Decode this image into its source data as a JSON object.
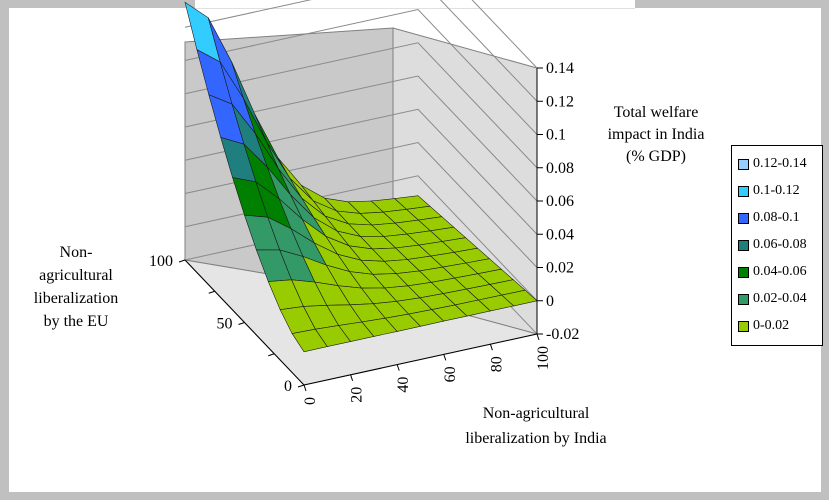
{
  "chart_data": {
    "type": "surface",
    "z_title_lines": [
      "Total welfare",
      "impact in India",
      "(% GDP)"
    ],
    "x_title_lines": [
      "Non-agricultural",
      "liberalization by India"
    ],
    "y_title_lines": [
      "Non-",
      "agricultural",
      "liberalization",
      "by the EU"
    ],
    "z_ticks": [
      "0.14",
      "0.12",
      "0.1",
      "0.08",
      "0.06",
      "0.04",
      "0.02",
      "0",
      "-0.02"
    ],
    "x_ticks": [
      "0",
      "20",
      "40",
      "60",
      "80",
      "100"
    ],
    "y_ticks": [
      "100",
      "50",
      "0"
    ],
    "zlim": [
      -0.02,
      0.14
    ],
    "xlim": [
      0,
      100
    ],
    "ylim": [
      0,
      100
    ],
    "legend_position": "right",
    "legend": [
      {
        "label": "0.12-0.14",
        "color": "#99ccff"
      },
      {
        "label": "0.1-0.12",
        "color": "#33ccff"
      },
      {
        "label": "0.08-0.1",
        "color": "#3366ff"
      },
      {
        "label": "0.06-0.08",
        "color": "#1f7f7f"
      },
      {
        "label": "0.04-0.06",
        "color": "#008000"
      },
      {
        "label": "0.02-0.04",
        "color": "#339966"
      },
      {
        "label": "0-0.02",
        "color": "#99cc00"
      }
    ],
    "surface": {
      "x": [
        0,
        10,
        20,
        30,
        40,
        50,
        60,
        70,
        80,
        90,
        100
      ],
      "y": [
        0,
        10,
        20,
        30,
        40,
        50,
        60,
        70,
        80,
        90,
        100
      ],
      "peak": {
        "x": 0,
        "y": 100,
        "z": 0.135
      }
    }
  }
}
